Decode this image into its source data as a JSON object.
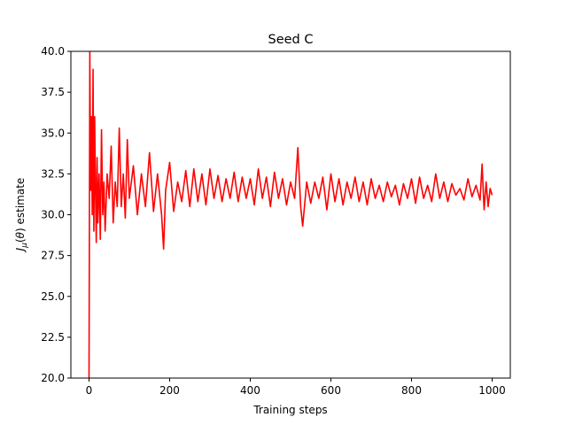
{
  "chart_data": {
    "type": "line",
    "title": "Seed C",
    "xlabel": "Training steps",
    "ylabel": "J_μ(θ) estimate",
    "xlim": [
      -45,
      1045
    ],
    "ylim": [
      20.0,
      40.0
    ],
    "x_ticks": [
      0,
      200,
      400,
      600,
      800,
      1000
    ],
    "y_ticks": [
      20.0,
      22.5,
      25.0,
      27.5,
      30.0,
      32.5,
      35.0,
      37.5,
      40.0
    ],
    "x_tick_labels": [
      "0",
      "200",
      "400",
      "600",
      "800",
      "1000"
    ],
    "y_tick_labels": [
      "20.0",
      "22.5",
      "25.0",
      "27.5",
      "30.0",
      "32.5",
      "35.0",
      "37.5",
      "40.0"
    ],
    "grid": false,
    "series": [
      {
        "color": "#ff0000",
        "x": [
          0,
          2,
          4,
          6,
          8,
          10,
          12,
          14,
          16,
          18,
          20,
          22,
          25,
          28,
          31,
          34,
          37,
          40,
          45,
          50,
          55,
          60,
          65,
          70,
          75,
          80,
          85,
          90,
          95,
          100,
          110,
          120,
          130,
          140,
          150,
          160,
          170,
          180,
          185,
          190,
          200,
          210,
          220,
          230,
          240,
          250,
          260,
          270,
          280,
          290,
          300,
          310,
          320,
          330,
          340,
          350,
          360,
          370,
          380,
          390,
          400,
          410,
          420,
          430,
          440,
          450,
          460,
          470,
          480,
          490,
          500,
          510,
          518,
          525,
          530,
          540,
          550,
          560,
          570,
          580,
          590,
          600,
          610,
          620,
          630,
          640,
          650,
          660,
          670,
          680,
          690,
          700,
          710,
          720,
          730,
          740,
          750,
          760,
          770,
          780,
          790,
          800,
          810,
          820,
          830,
          840,
          850,
          860,
          870,
          880,
          890,
          900,
          910,
          920,
          930,
          940,
          950,
          960,
          970,
          975,
          980,
          985,
          990,
          995,
          1000
        ],
        "y": [
          20.0,
          40.0,
          31.5,
          36.0,
          30.0,
          38.9,
          29.0,
          36.0,
          31.5,
          28.3,
          33.5,
          29.5,
          32.5,
          28.5,
          35.2,
          30.0,
          32.0,
          29.0,
          32.5,
          31.0,
          34.2,
          29.5,
          32.0,
          30.5,
          35.3,
          30.5,
          32.5,
          29.8,
          34.6,
          31.0,
          33.0,
          30.0,
          32.5,
          30.5,
          33.8,
          30.2,
          32.5,
          30.0,
          27.9,
          31.5,
          33.2,
          30.2,
          32.0,
          30.8,
          32.7,
          30.5,
          32.8,
          30.8,
          32.5,
          30.6,
          32.8,
          31.0,
          32.4,
          30.8,
          32.2,
          31.0,
          32.6,
          30.8,
          32.3,
          31.0,
          32.2,
          30.6,
          32.8,
          31.0,
          32.3,
          30.5,
          32.6,
          31.0,
          32.2,
          30.6,
          32.0,
          31.0,
          34.1,
          30.5,
          29.3,
          32.0,
          30.7,
          32.0,
          31.0,
          32.3,
          30.3,
          32.5,
          30.8,
          32.2,
          30.6,
          32.0,
          31.0,
          32.3,
          30.8,
          32.0,
          30.6,
          32.2,
          31.0,
          31.8,
          30.8,
          32.0,
          31.1,
          31.8,
          30.6,
          31.9,
          31.0,
          32.2,
          30.7,
          32.3,
          31.0,
          31.8,
          30.8,
          32.5,
          31.0,
          32.0,
          30.8,
          31.9,
          31.2,
          31.6,
          30.9,
          32.2,
          31.1,
          31.8,
          30.9,
          33.1,
          30.3,
          32.0,
          30.5,
          31.6,
          31.2
        ]
      }
    ]
  }
}
